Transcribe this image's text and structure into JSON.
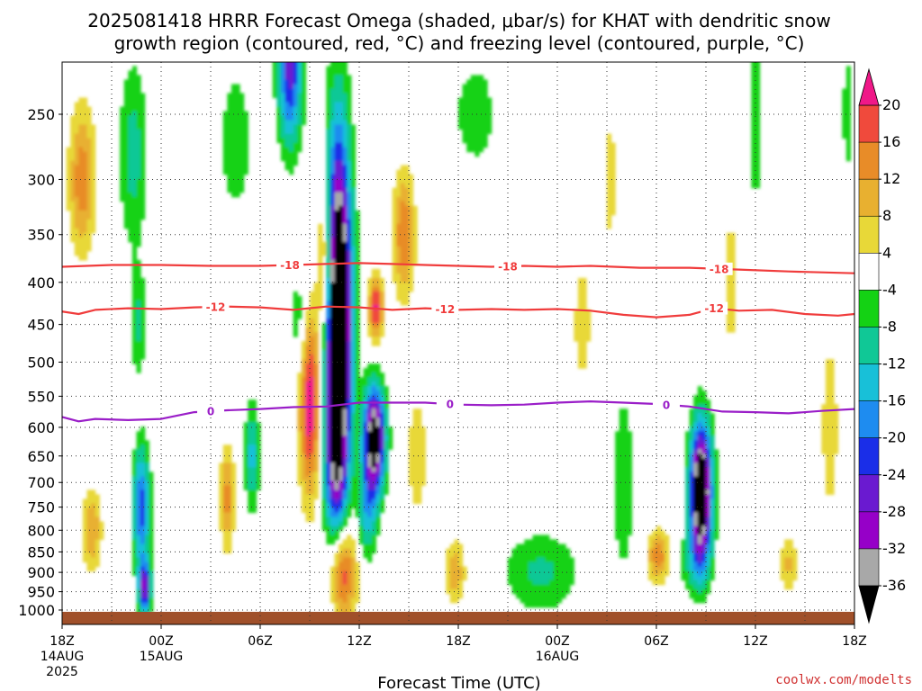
{
  "title": {
    "line1": "2025081418 HRRR Forecast Omega (shaded, μbar/s) for KHAT with dendritic snow",
    "line2": "growth region (contoured, red, °C) and freezing level (contoured, purple, °C)"
  },
  "credit": "coolwx.com/modelts",
  "chart_data": {
    "type": "heatmap",
    "xlabel": "Forecast Time (UTC)",
    "ylabel": "",
    "y_scale": "log",
    "y_inverted": true,
    "ylim": [
      200,
      1030
    ],
    "xlim": [
      0,
      48
    ],
    "grid": true,
    "y_ticks": [
      250,
      300,
      350,
      400,
      450,
      500,
      550,
      600,
      650,
      700,
      750,
      800,
      850,
      900,
      950,
      1000
    ],
    "x_ticks": [
      {
        "x": 0,
        "lines": [
          "18Z",
          "14AUG",
          "2025"
        ]
      },
      {
        "x": 6,
        "lines": [
          "00Z",
          "15AUG"
        ]
      },
      {
        "x": 12,
        "lines": [
          "06Z"
        ]
      },
      {
        "x": 18,
        "lines": [
          "12Z"
        ]
      },
      {
        "x": 24,
        "lines": [
          "18Z"
        ]
      },
      {
        "x": 30,
        "lines": [
          "00Z",
          "16AUG"
        ]
      },
      {
        "x": 36,
        "lines": [
          "06Z"
        ]
      },
      {
        "x": 42,
        "lines": [
          "12Z"
        ]
      },
      {
        "x": 48,
        "lines": [
          "18Z"
        ]
      }
    ],
    "colorbar": {
      "labels": [
        "20",
        "16",
        "12",
        "8",
        "4",
        "-4",
        "-8",
        "-12",
        "-16",
        "-20",
        "-24",
        "-28",
        "-32",
        "-36"
      ],
      "bins": [
        {
          "lo": -40,
          "hi": -36,
          "color": "#000000"
        },
        {
          "lo": -36,
          "hi": -32,
          "color": "#a8a8a8"
        },
        {
          "lo": -32,
          "hi": -28,
          "color": "#9600c8"
        },
        {
          "lo": -28,
          "hi": -24,
          "color": "#6a1ad0"
        },
        {
          "lo": -24,
          "hi": -20,
          "color": "#1a2ee8"
        },
        {
          "lo": -20,
          "hi": -16,
          "color": "#1e8cf0"
        },
        {
          "lo": -16,
          "hi": -12,
          "color": "#18c0d8"
        },
        {
          "lo": -12,
          "hi": -8,
          "color": "#10c896"
        },
        {
          "lo": -8,
          "hi": -4,
          "color": "#14d214"
        },
        {
          "lo": -4,
          "hi": 4,
          "color": "#ffffff"
        },
        {
          "lo": 4,
          "hi": 8,
          "color": "#e8d838"
        },
        {
          "lo": 8,
          "hi": 12,
          "color": "#e8b030"
        },
        {
          "lo": 12,
          "hi": 16,
          "color": "#e88c28"
        },
        {
          "lo": 16,
          "hi": 20,
          "color": "#f04a3c"
        },
        {
          "lo": 20,
          "hi": 24,
          "color": "#f01888"
        }
      ]
    },
    "omega_features": [
      {
        "x": 1.2,
        "p": 300,
        "sx": 0.55,
        "sy": 0.14,
        "v": 15
      },
      {
        "x": 1.8,
        "p": 800,
        "sx": 0.4,
        "sy": 0.08,
        "v": 12
      },
      {
        "x": 4.3,
        "p": 280,
        "sx": 0.6,
        "sy": 0.18,
        "v": -10
      },
      {
        "x": 4.6,
        "p": 450,
        "sx": 0.35,
        "sy": 0.1,
        "v": -9
      },
      {
        "x": 4.8,
        "p": 750,
        "sx": 0.35,
        "sy": 0.12,
        "v": -22
      },
      {
        "x": 5.0,
        "p": 940,
        "sx": 0.25,
        "sy": 0.05,
        "v": -28
      },
      {
        "x": 10.5,
        "p": 270,
        "sx": 0.7,
        "sy": 0.15,
        "v": -7
      },
      {
        "x": 10.0,
        "p": 730,
        "sx": 0.3,
        "sy": 0.1,
        "v": 14
      },
      {
        "x": 11.5,
        "p": 650,
        "sx": 0.3,
        "sy": 0.1,
        "v": -14
      },
      {
        "x": 13.8,
        "p": 220,
        "sx": 0.5,
        "sy": 0.15,
        "v": -26
      },
      {
        "x": 14.4,
        "p": 450,
        "sx": 0.4,
        "sy": 0.12,
        "v": -8
      },
      {
        "x": 15.0,
        "p": 560,
        "sx": 0.45,
        "sy": 0.18,
        "v": 24
      },
      {
        "x": 16.0,
        "p": 380,
        "sx": 0.35,
        "sy": 0.18,
        "v": 22
      },
      {
        "x": 16.7,
        "p": 450,
        "sx": 0.55,
        "sy": 0.35,
        "v": -60
      },
      {
        "x": 17.0,
        "p": 900,
        "sx": 0.55,
        "sy": 0.1,
        "v": 23
      },
      {
        "x": 16.5,
        "p": 680,
        "sx": 0.4,
        "sy": 0.1,
        "v": -10
      },
      {
        "x": 18.9,
        "p": 620,
        "sx": 0.45,
        "sy": 0.1,
        "v": -44
      },
      {
        "x": 19.0,
        "p": 430,
        "sx": 0.3,
        "sy": 0.06,
        "v": 22
      },
      {
        "x": 18.5,
        "p": 760,
        "sx": 0.4,
        "sy": 0.09,
        "v": -14
      },
      {
        "x": 20.7,
        "p": 350,
        "sx": 0.45,
        "sy": 0.12,
        "v": 16
      },
      {
        "x": 21.5,
        "p": 650,
        "sx": 0.4,
        "sy": 0.12,
        "v": 8
      },
      {
        "x": 23.8,
        "p": 900,
        "sx": 0.4,
        "sy": 0.06,
        "v": 12
      },
      {
        "x": 25.5,
        "p": 250,
        "sx": 1.4,
        "sy": 0.12,
        "v": -7
      },
      {
        "x": 27.0,
        "p": 250,
        "sx": 0.8,
        "sy": 0.2,
        "v": 6
      },
      {
        "x": 29.0,
        "p": 900,
        "sx": 1.6,
        "sy": 0.08,
        "v": -9
      },
      {
        "x": 31.5,
        "p": 450,
        "sx": 0.6,
        "sy": 0.2,
        "v": 5
      },
      {
        "x": 33.2,
        "p": 300,
        "sx": 0.4,
        "sy": 0.2,
        "v": 5
      },
      {
        "x": 34.0,
        "p": 700,
        "sx": 0.5,
        "sy": 0.2,
        "v": -7
      },
      {
        "x": 36.1,
        "p": 860,
        "sx": 0.45,
        "sy": 0.05,
        "v": 15
      },
      {
        "x": 38.7,
        "p": 720,
        "sx": 0.45,
        "sy": 0.13,
        "v": -50
      },
      {
        "x": 38.3,
        "p": 880,
        "sx": 0.6,
        "sy": 0.06,
        "v": -8
      },
      {
        "x": 40.5,
        "p": 400,
        "sx": 0.35,
        "sy": 0.25,
        "v": 5
      },
      {
        "x": 42.0,
        "p": 250,
        "sx": 0.3,
        "sy": 0.25,
        "v": -6
      },
      {
        "x": 44.0,
        "p": 880,
        "sx": 0.35,
        "sy": 0.06,
        "v": 9
      },
      {
        "x": 46.5,
        "p": 600,
        "sx": 0.6,
        "sy": 0.3,
        "v": 5
      },
      {
        "x": 47.6,
        "p": 250,
        "sx": 0.3,
        "sy": 0.15,
        "v": -6
      }
    ],
    "contours": [
      {
        "name": "-18",
        "color": "#f03c3c",
        "label_text": "-18",
        "points": [
          [
            0,
            383
          ],
          [
            3,
            381
          ],
          [
            6,
            381
          ],
          [
            9,
            382
          ],
          [
            12,
            382
          ],
          [
            14,
            381
          ],
          [
            16,
            380
          ],
          [
            18,
            379
          ],
          [
            20,
            380
          ],
          [
            22,
            381
          ],
          [
            24,
            382
          ],
          [
            26,
            383
          ],
          [
            28,
            382
          ],
          [
            30,
            383
          ],
          [
            32,
            382
          ],
          [
            35,
            384
          ],
          [
            38,
            384
          ],
          [
            41,
            386
          ],
          [
            44,
            388
          ],
          [
            46,
            389
          ],
          [
            48,
            390
          ]
        ],
        "label_positions": [
          13.8,
          27.0,
          39.8
        ]
      },
      {
        "name": "-12",
        "color": "#f03c3c",
        "label_text": "-12",
        "points": [
          [
            0,
            434
          ],
          [
            1,
            437
          ],
          [
            2,
            432
          ],
          [
            4,
            430
          ],
          [
            6,
            431
          ],
          [
            8,
            429
          ],
          [
            10,
            428
          ],
          [
            12,
            429
          ],
          [
            14,
            432
          ],
          [
            16,
            428
          ],
          [
            18,
            429
          ],
          [
            20,
            432
          ],
          [
            22,
            430
          ],
          [
            24,
            432
          ],
          [
            26,
            431
          ],
          [
            28,
            432
          ],
          [
            30,
            431
          ],
          [
            32,
            433
          ],
          [
            34,
            438
          ],
          [
            36,
            441
          ],
          [
            38,
            438
          ],
          [
            39.5,
            430
          ],
          [
            41,
            433
          ],
          [
            43,
            432
          ],
          [
            45,
            437
          ],
          [
            47,
            439
          ],
          [
            48,
            437
          ]
        ],
        "label_positions": [
          9.3,
          23.2,
          39.5
        ]
      },
      {
        "name": "0",
        "color": "#9a1ec8",
        "label_text": "0",
        "points": [
          [
            0,
            583
          ],
          [
            1,
            590
          ],
          [
            2,
            586
          ],
          [
            4,
            588
          ],
          [
            6,
            586
          ],
          [
            8,
            575
          ],
          [
            10,
            572
          ],
          [
            12,
            570
          ],
          [
            14,
            567
          ],
          [
            16,
            566
          ],
          [
            18,
            560
          ],
          [
            20,
            560
          ],
          [
            22,
            560
          ],
          [
            24,
            563
          ],
          [
            26,
            564
          ],
          [
            28,
            563
          ],
          [
            30,
            560
          ],
          [
            32,
            558
          ],
          [
            34,
            560
          ],
          [
            36,
            562
          ],
          [
            38,
            566
          ],
          [
            40,
            574
          ],
          [
            42,
            575
          ],
          [
            44,
            577
          ],
          [
            46,
            573
          ],
          [
            48,
            570
          ]
        ],
        "label_positions": [
          9.0,
          23.5,
          36.6
        ]
      }
    ]
  }
}
